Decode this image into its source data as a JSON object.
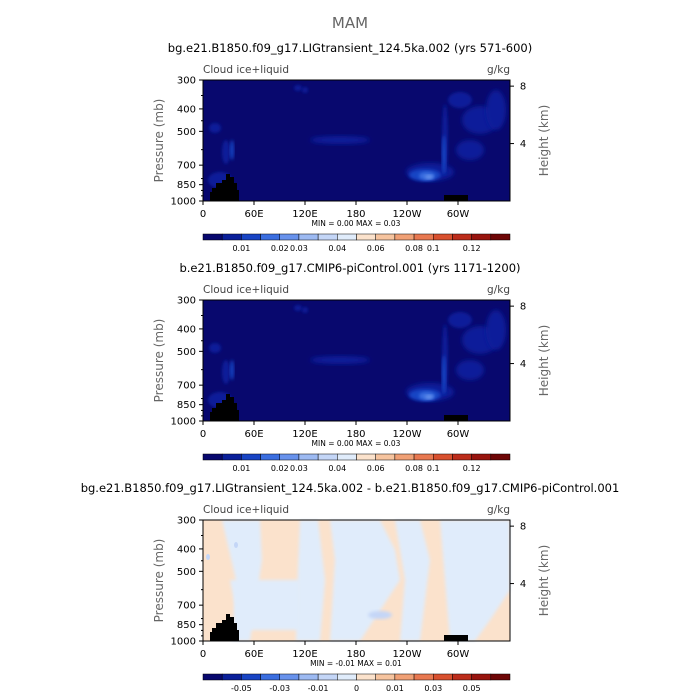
{
  "page_title": "MAM",
  "chart_data": [
    {
      "type": "heatmap",
      "title": "bg.e21.B1850.f09_g17.LIGtransient_124.5ka.002 (yrs 571-600)",
      "variable_label": "Cloud ice+liquid",
      "units": "g/kg",
      "xlabel": "",
      "ylabel": "Pressure (mb)",
      "y2label": "Height (km)",
      "x_ticks": [
        "0",
        "60E",
        "120E",
        "180",
        "120W",
        "60W"
      ],
      "y_ticks": [
        300,
        400,
        500,
        700,
        850,
        1000
      ],
      "y2_ticks": [
        8,
        4
      ],
      "ylim": [
        1000,
        300
      ],
      "stats": "MIN =    0.00   MAX =    0.03",
      "colorbar": {
        "labels": [
          "0.01",
          "0.02",
          "0.03",
          "0.04",
          "0.06",
          "0.08",
          "0.1",
          "0.12"
        ],
        "colors": [
          "#08086e",
          "#0a1f9a",
          "#1844c4",
          "#3a6ee0",
          "#6892ec",
          "#9dbaf2",
          "#c4d6f7",
          "#e0ecfb",
          "#fbe2cc",
          "#f6c49f",
          "#f0a075",
          "#e87850",
          "#d8502e",
          "#bc2c1a",
          "#98140e",
          "#6e0606"
        ]
      }
    },
    {
      "type": "heatmap",
      "title": "b.e21.B1850.f09_g17.CMIP6-piControl.001 (yrs 1171-1200)",
      "variable_label": "Cloud ice+liquid",
      "units": "g/kg",
      "xlabel": "",
      "ylabel": "Pressure (mb)",
      "y2label": "Height (km)",
      "x_ticks": [
        "0",
        "60E",
        "120E",
        "180",
        "120W",
        "60W"
      ],
      "y_ticks": [
        300,
        400,
        500,
        700,
        850,
        1000
      ],
      "y2_ticks": [
        8,
        4
      ],
      "ylim": [
        1000,
        300
      ],
      "stats": "MIN =    0.00   MAX =    0.03",
      "colorbar": {
        "labels": [
          "0.01",
          "0.02",
          "0.03",
          "0.04",
          "0.06",
          "0.08",
          "0.1",
          "0.12"
        ],
        "colors": [
          "#08086e",
          "#0a1f9a",
          "#1844c4",
          "#3a6ee0",
          "#6892ec",
          "#9dbaf2",
          "#c4d6f7",
          "#e0ecfb",
          "#fbe2cc",
          "#f6c49f",
          "#f0a075",
          "#e87850",
          "#d8502e",
          "#bc2c1a",
          "#98140e",
          "#6e0606"
        ]
      }
    },
    {
      "type": "heatmap",
      "title": "bg.e21.B1850.f09_g17.LIGtransient_124.5ka.002 - b.e21.B1850.f09_g17.CMIP6-piControl.001",
      "variable_label": "Cloud ice+liquid",
      "units": "g/kg",
      "xlabel": "",
      "ylabel": "Pressure (mb)",
      "y2label": "Height (km)",
      "x_ticks": [
        "0",
        "60E",
        "120E",
        "180",
        "120W",
        "60W"
      ],
      "y_ticks": [
        300,
        400,
        500,
        700,
        850,
        1000
      ],
      "y2_ticks": [
        8,
        4
      ],
      "ylim": [
        1000,
        300
      ],
      "stats": "MIN =   -0.01   MAX =    0.01",
      "colorbar": {
        "labels": [
          "-0.05",
          "-0.03",
          "-0.01",
          "0",
          "0.01",
          "0.03",
          "0.05"
        ],
        "colors": [
          "#08086e",
          "#0a1f9a",
          "#1844c4",
          "#3a6ee0",
          "#6892ec",
          "#9dbaf2",
          "#c4d6f7",
          "#e0ecfb",
          "#fbe2cc",
          "#f6c49f",
          "#f0a075",
          "#e87850",
          "#d8502e",
          "#bc2c1a",
          "#98140e",
          "#6e0606"
        ]
      }
    }
  ]
}
